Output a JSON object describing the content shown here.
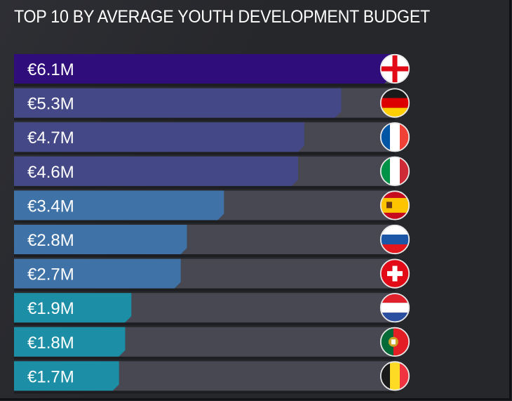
{
  "chart_data": {
    "type": "bar",
    "orientation": "horizontal",
    "title": "TOP 10 BY AVERAGE YOUTH DEVELOPMENT BUDGET",
    "xlabel": "",
    "ylabel": "",
    "unit": "€M",
    "xlim": [
      0,
      6.1
    ],
    "grid": false,
    "legend": "none",
    "categories": [
      "England",
      "Germany",
      "France",
      "Italy",
      "Spain",
      "Russia",
      "Switzerland",
      "Netherlands",
      "Portugal",
      "Belgium"
    ],
    "values": [
      6.1,
      5.3,
      4.7,
      4.6,
      3.4,
      2.8,
      2.7,
      1.9,
      1.8,
      1.7
    ],
    "labels": [
      "€6.1M",
      "€5.3M",
      "€4.7M",
      "€4.6M",
      "€3.4M",
      "€2.8M",
      "€2.7M",
      "€1.9M",
      "€1.8M",
      "€1.7M"
    ],
    "bar_colors": [
      "#2f0d7a",
      "#454887",
      "#454887",
      "#454887",
      "#3f73a8",
      "#3f73a8",
      "#3f73a8",
      "#1c8fa6",
      "#1c8fa6",
      "#1c8fa6"
    ],
    "flags": [
      "england-flag",
      "germany-flag",
      "france-flag",
      "italy-flag",
      "spain-flag",
      "russia-flag",
      "switzerland-flag",
      "netherlands-flag",
      "portugal-flag",
      "belgium-flag"
    ]
  },
  "colors": {
    "background": "#26272b",
    "track": "#474852",
    "text": "#ffffff"
  }
}
